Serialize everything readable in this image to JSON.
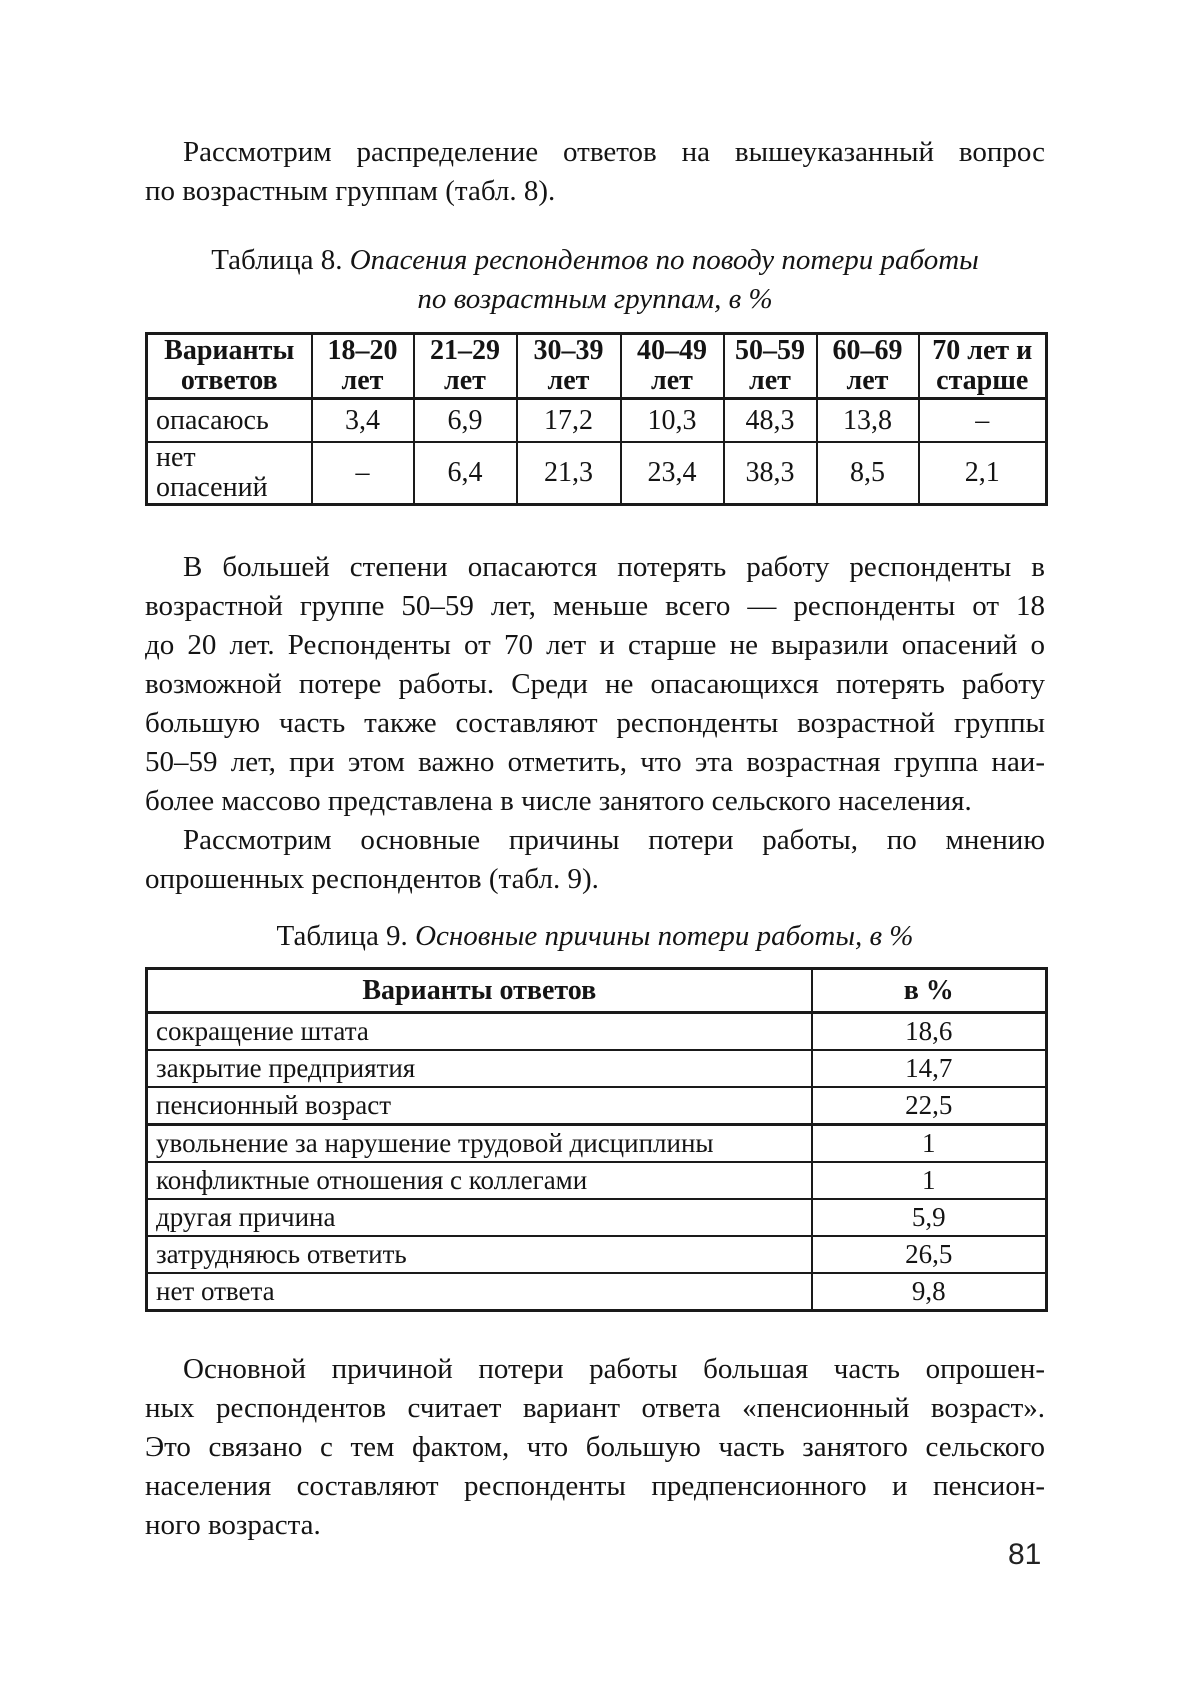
{
  "page": {
    "number": "81",
    "background_color": "#ffffff",
    "text_color": "#141414"
  },
  "intro": {
    "lines": [
      "Рассмотрим распределение ответов на вышеуказанный вопрос",
      "по возрастным группам (табл. 8)."
    ]
  },
  "table8": {
    "caption_label": "Таблица 8.",
    "caption_title_line1": "Опасения респондентов по поводу потери работы",
    "caption_title_line2": "по возрастным группам, в %",
    "headers": [
      [
        "Варианты",
        "ответов"
      ],
      [
        "18–20",
        "лет"
      ],
      [
        "21–29",
        "лет"
      ],
      [
        "30–39",
        "лет"
      ],
      [
        "40–49",
        "лет"
      ],
      [
        "50–59",
        "лет"
      ],
      [
        "60–69",
        "лет"
      ],
      [
        "70 лет и",
        "старше"
      ]
    ],
    "rows": [
      {
        "label": "опасаюсь",
        "values": [
          "3,4",
          "6,9",
          "17,2",
          "10,3",
          "48,3",
          "13,8",
          "–"
        ]
      },
      {
        "label": "нет опасений",
        "values": [
          "–",
          "6,4",
          "21,3",
          "23,4",
          "38,3",
          "8,5",
          "2,1"
        ]
      }
    ]
  },
  "para2": {
    "lines": [
      "В большей степени опасаются потерять работу респонденты в",
      "возрастной группе 50–59 лет, меньше всего — респонденты от 18",
      "до 20 лет. Респонденты от 70 лет и старше не выразили опасений о",
      "возможной потере работы. Среди не опасающихся потерять работу",
      "большую часть также составляют респонденты возрастной группы",
      "50–59 лет, при этом важно отметить, что эта возрастная группа наи-",
      "более массово представлена в числе занятого сельского населения."
    ]
  },
  "para3": {
    "lines": [
      "Рассмотрим основные причины потери работы, по мнению",
      "опрошенных респондентов (табл. 9)."
    ]
  },
  "table9": {
    "caption_label": "Таблица 9.",
    "caption_title": "Основные причины потери работы, в %",
    "headers": [
      "Варианты ответов",
      "в %"
    ],
    "rows": [
      {
        "label": "сокращение штата",
        "value": "18,6"
      },
      {
        "label": "закрытие предприятия",
        "value": "14,7"
      },
      {
        "label": "пенсионный возраст",
        "value": "22,5"
      },
      {
        "label": "увольнение за нарушение трудовой дисциплины",
        "value": "1"
      },
      {
        "label": "конфликтные отношения с коллегами",
        "value": "1"
      },
      {
        "label": "другая причина",
        "value": "5,9"
      },
      {
        "label": "затрудняюсь ответить",
        "value": "26,5"
      },
      {
        "label": "нет ответа",
        "value": "9,8"
      }
    ]
  },
  "para4": {
    "lines": [
      "Основной причиной потери работы большая часть опрошен-",
      "ных респондентов считает вариант ответа «пенсионный возраст».",
      "Это связано с тем фактом, что большую часть занятого сельского",
      "населения составляют респонденты предпенсионного и пенсион-",
      "ного возраста."
    ]
  }
}
